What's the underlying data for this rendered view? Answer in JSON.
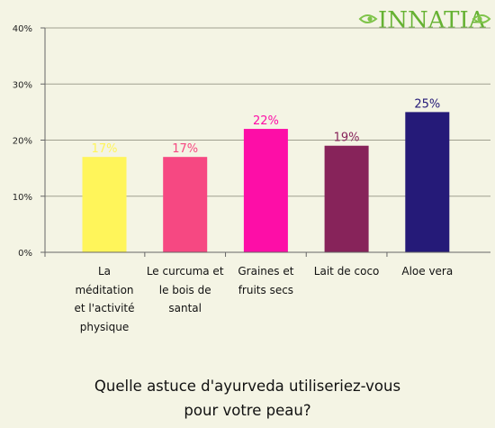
{
  "brand": {
    "name": "INNATIA",
    "color": "#66b233"
  },
  "chart_data": {
    "type": "bar",
    "title": "Quelle astuce d'ayurveda utiliseriez-vous pour votre peau?",
    "xlabel": "",
    "ylabel": "",
    "ylim": [
      0,
      40
    ],
    "yticks": [
      "0%",
      "10%",
      "20%",
      "30%",
      "40%"
    ],
    "grid": true,
    "categories": [
      "La méditation et l'activité physique",
      "Le curcuma et le bois de santal",
      "Graines et fruits secs",
      "Lait de coco",
      "Aloe vera"
    ],
    "values": [
      17,
      17,
      22,
      19,
      25
    ],
    "data_labels": [
      "17%",
      "17%",
      "22%",
      "19%",
      "25%"
    ],
    "colors": [
      "#fff55a",
      "#f64882",
      "#fd0ea7",
      "#87235a",
      "#251a78"
    ]
  }
}
